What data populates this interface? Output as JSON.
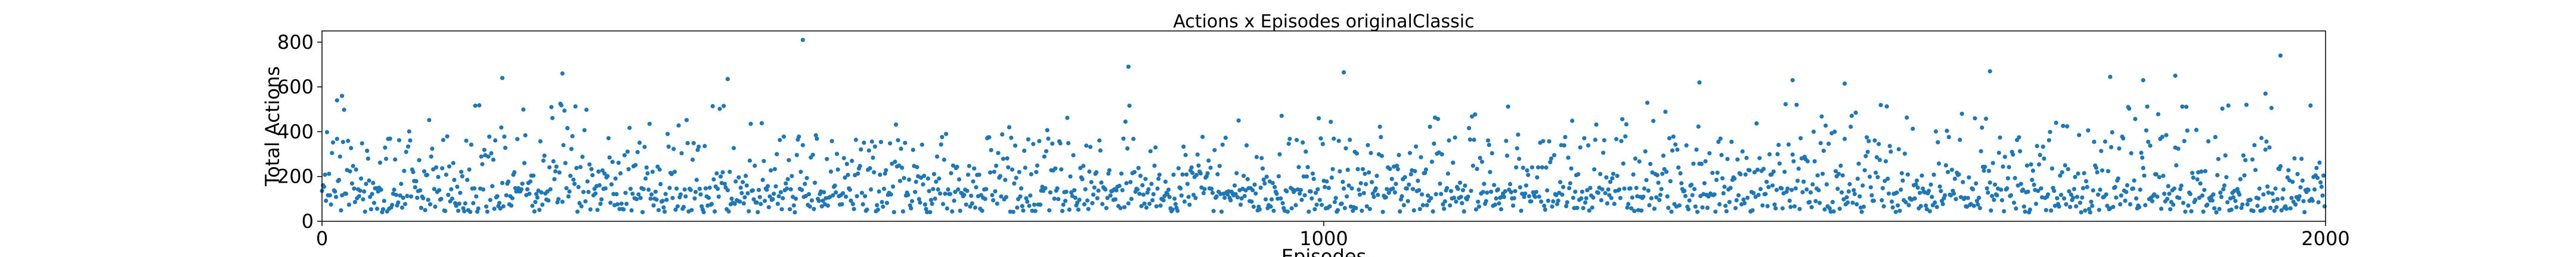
{
  "chart_data": {
    "type": "scatter",
    "title": "Actions x Episodes originalClassic",
    "xlabel": "Episodes",
    "ylabel": "Total Actions",
    "xlim": [
      0,
      2000
    ],
    "ylim": [
      0,
      850
    ],
    "x_ticks": [
      0,
      1000,
      2000
    ],
    "y_ticks": [
      0,
      200,
      400,
      600,
      800
    ],
    "grid": false,
    "color": "#1f77b4",
    "num_points": 2000,
    "notable_points": [
      {
        "x": 480,
        "y": 810
      },
      {
        "x": 1955,
        "y": 740
      },
      {
        "x": 805,
        "y": 690
      },
      {
        "x": 1665,
        "y": 670
      },
      {
        "x": 1020,
        "y": 665
      },
      {
        "x": 240,
        "y": 660
      },
      {
        "x": 1850,
        "y": 650
      },
      {
        "x": 1785,
        "y": 645
      },
      {
        "x": 180,
        "y": 640
      },
      {
        "x": 405,
        "y": 635
      },
      {
        "x": 1375,
        "y": 620
      },
      {
        "x": 1468,
        "y": 630
      },
      {
        "x": 1818,
        "y": 630
      },
      {
        "x": 1520,
        "y": 615
      },
      {
        "x": 15,
        "y": 540
      },
      {
        "x": 20,
        "y": 560
      },
      {
        "x": 1940,
        "y": 570
      }
    ],
    "typical_range": [
      40,
      450
    ]
  }
}
